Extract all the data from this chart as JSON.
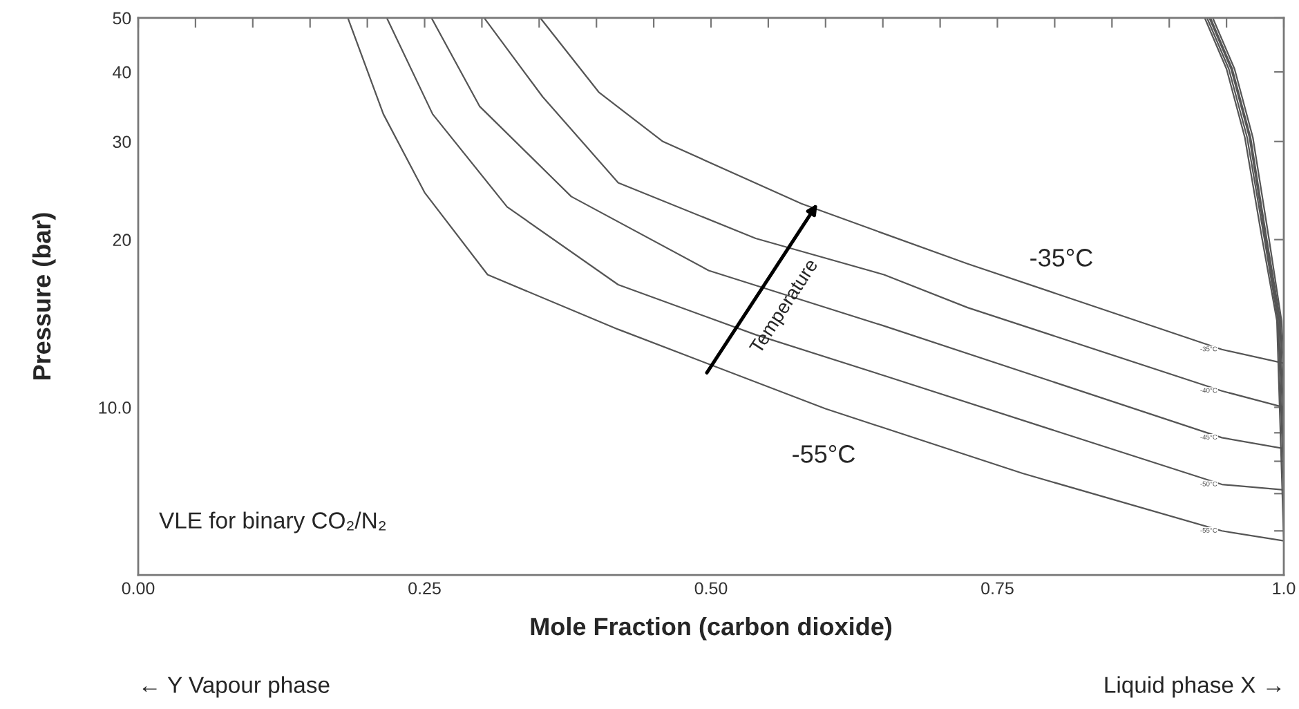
{
  "chart_data": {
    "type": "line",
    "xlabel": "Mole Fraction (carbon dioxide)",
    "ylabel": "Pressure (bar)",
    "log": "y",
    "grid": false,
    "legend": false,
    "marker": "none",
    "line_style": "solid",
    "xlim": [
      0,
      1
    ],
    "ylim": [
      5,
      50
    ],
    "xticks": [
      {
        "value": 0,
        "label": "0.00"
      },
      {
        "value": 0.05,
        "label": null
      },
      {
        "value": 0.1,
        "label": null
      },
      {
        "value": 0.15,
        "label": null
      },
      {
        "value": 0.2,
        "label": null
      },
      {
        "value": 0.25,
        "label": "0.25"
      },
      {
        "value": 0.3,
        "label": null
      },
      {
        "value": 0.35,
        "label": null
      },
      {
        "value": 0.4,
        "label": null
      },
      {
        "value": 0.45,
        "label": null
      },
      {
        "value": 0.5,
        "label": "0.50"
      },
      {
        "value": 0.55,
        "label": null
      },
      {
        "value": 0.6,
        "label": null
      },
      {
        "value": 0.65,
        "label": null
      },
      {
        "value": 0.7,
        "label": null
      },
      {
        "value": 0.75,
        "label": "0.75"
      },
      {
        "value": 0.8,
        "label": null
      },
      {
        "value": 0.85,
        "label": null
      },
      {
        "value": 0.9,
        "label": null
      },
      {
        "value": 0.95,
        "label": null
      },
      {
        "value": 1,
        "label": "1.0"
      }
    ],
    "yticks": [
      {
        "value": 6,
        "label": null
      },
      {
        "value": 7,
        "label": null
      },
      {
        "value": 8,
        "label": null
      },
      {
        "value": 9,
        "label": null
      },
      {
        "value": 10,
        "label": "10.0"
      },
      20,
      30,
      40,
      50
    ],
    "series": [
      {
        "name": "-35°C",
        "color": "#555555",
        "x": [
          0.351,
          0.402,
          0.458,
          0.579,
          0.651,
          0.724,
          0.946,
          1.0,
          0.998,
          0.987,
          0.973,
          0.957,
          0.938
        ],
        "values": [
          50,
          36.8,
          30.0,
          23.2,
          20.5,
          18.1,
          12.7,
          12.0,
          14.3,
          20.1,
          30.5,
          40.5,
          50
        ]
      },
      {
        "name": "-40°C",
        "color": "#555555",
        "x": [
          0.302,
          0.353,
          0.419,
          0.539,
          0.651,
          0.724,
          0.946,
          1.0,
          0.997,
          0.985,
          0.971,
          0.955,
          0.936
        ],
        "values": [
          50,
          36.1,
          25.3,
          20.1,
          17.3,
          15.1,
          10.7,
          10.0,
          14.3,
          20.1,
          30.5,
          40.5,
          50
        ]
      },
      {
        "name": "-45°C",
        "color": "#555555",
        "x": [
          0.256,
          0.298,
          0.378,
          0.498,
          0.651,
          0.946,
          1.0,
          0.996,
          0.984,
          0.97,
          0.954,
          0.935
        ],
        "values": [
          50,
          34.7,
          23.9,
          17.6,
          14.0,
          8.82,
          8.43,
          14.3,
          20.1,
          30.5,
          40.5,
          50
        ]
      },
      {
        "name": "-50°C",
        "color": "#555555",
        "x": [
          0.217,
          0.257,
          0.322,
          0.419,
          0.539,
          0.651,
          0.946,
          1.0,
          0.995,
          0.983,
          0.968,
          0.952,
          0.933
        ],
        "values": [
          50,
          33.6,
          22.9,
          16.6,
          13.5,
          11.4,
          7.27,
          7.11,
          14.3,
          20.1,
          30.5,
          40.5,
          50
        ]
      },
      {
        "name": "-55°C",
        "color": "#555555",
        "x": [
          0.183,
          0.214,
          0.25,
          0.305,
          0.419,
          0.6,
          0.772,
          0.946,
          1.0,
          0.994,
          0.981,
          0.966,
          0.95,
          0.931
        ],
        "values": [
          50,
          33.6,
          24.3,
          17.3,
          13.8,
          9.94,
          7.61,
          6.0,
          5.76,
          14.3,
          20.1,
          30.5,
          40.5,
          50
        ]
      }
    ],
    "annotations": [
      "-35°C",
      "-55°C",
      "Temperature",
      "VLE for binary CO₂/N₂",
      "← Y Vapour phase",
      "Liquid phase X →"
    ]
  }
}
